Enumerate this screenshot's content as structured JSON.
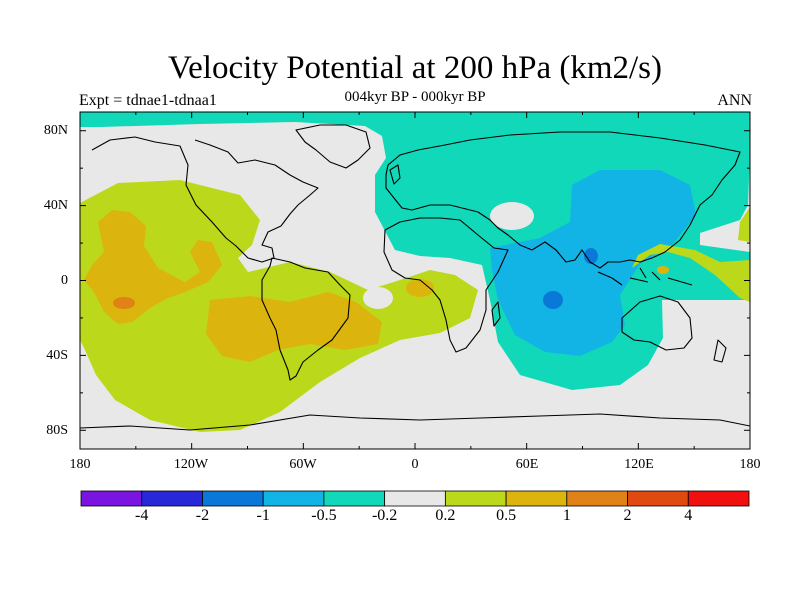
{
  "title": "Velocity Potential at 200 hPa (km2/s)",
  "subtitle": "004kyr BP - 000kyr BP",
  "left_string": "Expt = tdnae1-tdnaa1",
  "right_string": "ANN",
  "lat_labels": [
    "80N",
    "40N",
    "0",
    "40S",
    "80S"
  ],
  "lon_labels": [
    "180",
    "120W",
    "60W",
    "0",
    "60E",
    "120E",
    "180"
  ],
  "colorbar": {
    "labels": [
      "-4",
      "-2",
      "-1",
      "-0.5",
      "-0.2",
      "0.2",
      "0.5",
      "1",
      "2",
      "4"
    ],
    "colors": [
      "#7a14e0",
      "#2828d8",
      "#0a78d8",
      "#12b4e6",
      "#10d8b8",
      "#e8e8e8",
      "#bcd81a",
      "#dcb40e",
      "#e08218",
      "#e04a10",
      "#f01010"
    ]
  },
  "palette": {
    "neutral": "#e8e8e8",
    "pos_0_2": "#bcd81a",
    "pos_0_5": "#dcb40e",
    "pos_1": "#e08218",
    "neg_0_2": "#10d8b8",
    "neg_0_5": "#12b4e6",
    "neg_1": "#0a78d8"
  }
}
